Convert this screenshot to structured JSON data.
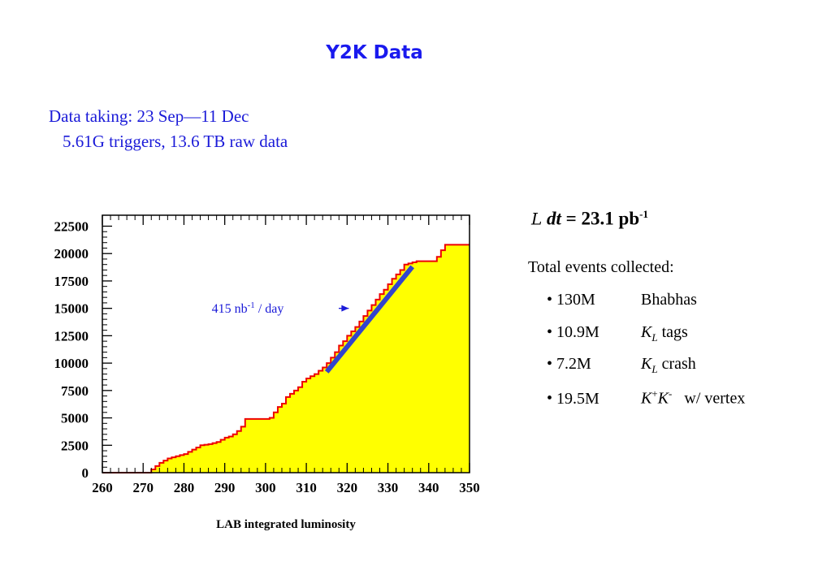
{
  "title": "Y2K Data",
  "info": {
    "line1": "Data taking: 23 Sep—11 Dec",
    "line2": "5.61G triggers, 13.6 TB raw data"
  },
  "luminosity": {
    "symbol": "L",
    "dt": "dt",
    "value": "= 23.1 pb",
    "exponent": "-1"
  },
  "events": {
    "header": "Total events collected:",
    "items": [
      {
        "num": "130M",
        "label": "Bhabhas"
      },
      {
        "num": "10.9M",
        "label": "K",
        "sub": "L",
        "suffix": " tags"
      },
      {
        "num": "7.2M",
        "label": "K",
        "sub": "L",
        "suffix": " crash"
      },
      {
        "num": "19.5M",
        "label": "K",
        "sup1": "+",
        "label2": "K",
        "sup2": "-",
        "suffix": "   w/ vertex"
      }
    ]
  },
  "chart_data": {
    "type": "area",
    "xlabel": "LAB integrated luminosity",
    "ylabel": "",
    "xlim": [
      260,
      350
    ],
    "ylim": [
      0,
      23500
    ],
    "xticks": [
      "260",
      "270",
      "280",
      "290",
      "300",
      "310",
      "320",
      "330",
      "340",
      "350"
    ],
    "yticks": [
      "0",
      "2500",
      "5000",
      "7500",
      "10000",
      "12500",
      "15000",
      "17500",
      "20000",
      "22500"
    ],
    "fill_color": "#ffff00",
    "line_color": "#ee0000",
    "fit_color": "#3344cc",
    "series": [
      {
        "x": [
          271,
          272,
          273,
          274,
          275,
          276,
          277,
          278,
          279,
          280,
          281,
          282,
          283,
          284,
          285,
          286,
          287,
          288,
          289,
          290,
          291,
          292,
          293,
          294,
          295,
          296,
          297,
          298,
          300,
          301,
          302,
          303,
          304,
          305,
          306,
          307,
          308,
          309,
          310,
          311,
          312,
          313,
          314,
          315,
          316,
          317,
          318,
          319,
          320,
          321,
          322,
          323,
          324,
          325,
          326,
          327,
          328,
          329,
          330,
          331,
          332,
          333,
          334,
          335,
          336,
          337,
          338,
          339,
          340,
          341,
          342,
          343,
          344,
          345,
          346,
          347,
          348,
          349,
          350
        ],
        "y": [
          0,
          300,
          600,
          900,
          1100,
          1300,
          1400,
          1500,
          1600,
          1700,
          1900,
          2100,
          2300,
          2500,
          2550,
          2600,
          2700,
          2800,
          3000,
          3200,
          3300,
          3500,
          3800,
          4200,
          4900,
          4900,
          4900,
          4900,
          4900,
          5000,
          5500,
          6000,
          6300,
          6900,
          7200,
          7500,
          7800,
          8300,
          8600,
          8800,
          9000,
          9300,
          9600,
          10000,
          10500,
          11000,
          11600,
          12000,
          12500,
          12900,
          13300,
          13800,
          14300,
          14800,
          15300,
          15800,
          16300,
          16700,
          17200,
          17700,
          18100,
          18500,
          19000,
          19100,
          19200,
          19300,
          19300,
          19300,
          19300,
          19300,
          19700,
          20300,
          20800,
          20800,
          20800,
          20800,
          20800,
          20800,
          20800
        ]
      }
    ],
    "fit_line": {
      "x": [
        315,
        336
      ],
      "y": [
        9200,
        18800
      ]
    },
    "annotation": {
      "text": "415 nb",
      "sup": "-1",
      "text2": " / day",
      "arrow_to": [
        322,
        15000
      ]
    }
  }
}
